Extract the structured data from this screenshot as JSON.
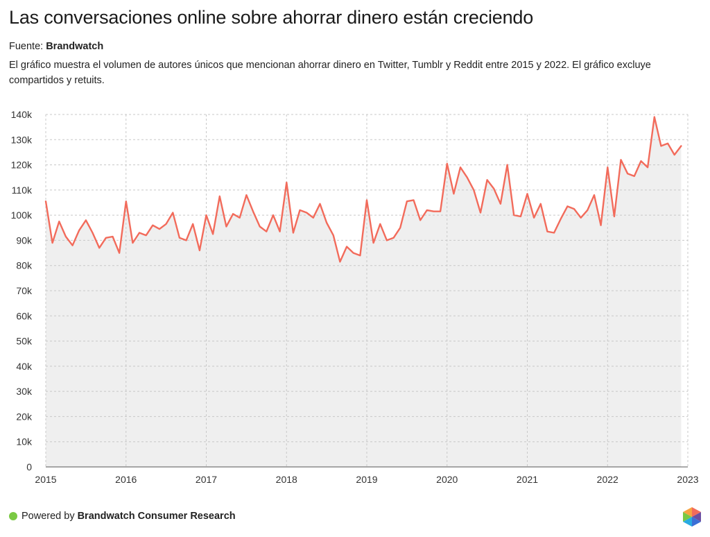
{
  "header": {
    "title": "Las conversaciones online sobre ahorrar dinero están creciendo",
    "source_label": "Fuente:",
    "source_name": "Brandwatch",
    "description": "El gráfico muestra el volumen de autores únicos que mencionan ahorrar dinero en Twitter, Tumblr y Reddit entre 2015 y 2022. El gráfico excluye compartidos y retuits."
  },
  "footer": {
    "powered_by": "Powered by",
    "brand": "Brandwatch Consumer Research"
  },
  "colors": {
    "line": "#f26b5b",
    "area": "#efefef",
    "grid": "#c8c8c8",
    "footer_dot": "#7ac943"
  },
  "chart_data": {
    "type": "area",
    "title": "Las conversaciones online sobre ahorrar dinero están creciendo",
    "xlabel": "",
    "ylabel": "",
    "x_start_year": 2015,
    "x_ticks": [
      "2015",
      "2016",
      "2017",
      "2018",
      "2019",
      "2020",
      "2021",
      "2022",
      "2023"
    ],
    "xlim": [
      2015,
      2023
    ],
    "y_ticks": [
      "0",
      "10k",
      "20k",
      "30k",
      "40k",
      "50k",
      "60k",
      "70k",
      "80k",
      "90k",
      "100k",
      "110k",
      "120k",
      "130k",
      "140k"
    ],
    "ylim": [
      0,
      140000
    ],
    "grid": true,
    "series": [
      {
        "name": "Autores únicos",
        "frequency": "monthly",
        "values": [
          105500,
          89000,
          97500,
          91500,
          88000,
          94000,
          98000,
          93000,
          87000,
          91000,
          91500,
          85000,
          105500,
          89000,
          93000,
          92000,
          96000,
          94500,
          96500,
          101000,
          91000,
          90000,
          96500,
          86000,
          100000,
          92500,
          107500,
          95500,
          100500,
          99000,
          108000,
          101500,
          95500,
          93500,
          100000,
          93500,
          113000,
          93000,
          102000,
          101000,
          99000,
          104500,
          97000,
          92000,
          81500,
          87500,
          85000,
          84000,
          106000,
          89000,
          96500,
          90000,
          91000,
          95000,
          105500,
          106000,
          98000,
          102000,
          101500,
          101500,
          120500,
          108500,
          119000,
          115000,
          110000,
          101000,
          114000,
          110500,
          104500,
          120000,
          100000,
          99500,
          108500,
          99000,
          104500,
          93500,
          93000,
          98500,
          103500,
          102500,
          99000,
          102000,
          108000,
          96000,
          119000,
          99500,
          122000,
          116500,
          115500,
          121500,
          119000,
          139000,
          127500,
          128500,
          124000,
          127500
        ]
      }
    ]
  }
}
